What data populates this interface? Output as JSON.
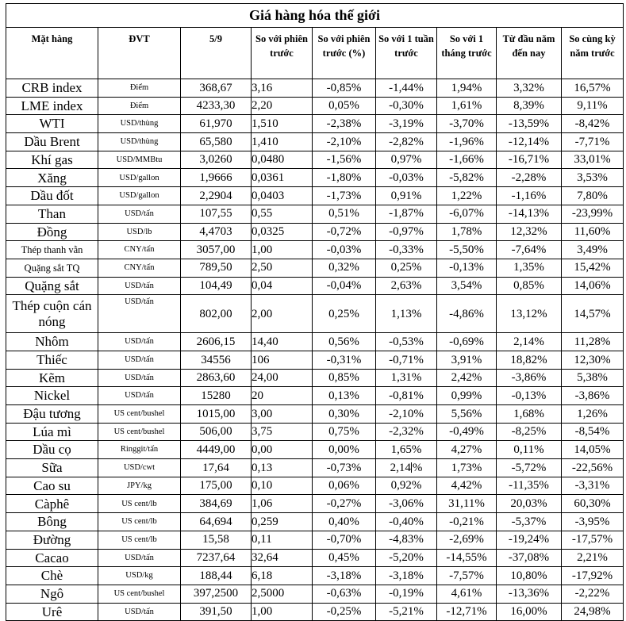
{
  "title": "Giá hàng hóa thế giới",
  "columns": [
    "Mặt hàng",
    "ĐVT",
    "5/9",
    "So với phiên trước",
    "So với phiên trước (%)",
    "So với 1 tuần trước",
    "So với 1 tháng trước",
    "Từ đầu năm đến nay",
    "So cùng kỳ năm trước"
  ],
  "rows": [
    {
      "name": "CRB index",
      "unit": "Điểm",
      "price": "368,67",
      "change": "3,16",
      "pct_session": "-0,85%",
      "pct_week": "-1,44%",
      "pct_month": "1,94%",
      "pct_ytd": "3,32%",
      "pct_yoy": "16,57%"
    },
    {
      "name": "LME index",
      "unit": "Điểm",
      "price": "4233,30",
      "change": "2,20",
      "pct_session": "0,05%",
      "pct_week": "-0,30%",
      "pct_month": "1,61%",
      "pct_ytd": "8,39%",
      "pct_yoy": "9,11%"
    },
    {
      "name": "WTI",
      "unit": "USD/thùng",
      "price": "61,970",
      "change": "1,510",
      "pct_session": "-2,38%",
      "pct_week": "-3,19%",
      "pct_month": "-3,70%",
      "pct_ytd": "-13,59%",
      "pct_yoy": "-8,42%"
    },
    {
      "name": "Dầu Brent",
      "unit": "USD/thùng",
      "price": "65,580",
      "change": "1,410",
      "pct_session": "-2,10%",
      "pct_week": "-2,82%",
      "pct_month": "-1,96%",
      "pct_ytd": "-12,14%",
      "pct_yoy": "-7,71%"
    },
    {
      "name": "Khí gas",
      "unit": "USD/MMBtu",
      "price": "3,0260",
      "change": "0,0480",
      "pct_session": "-1,56%",
      "pct_week": "0,97%",
      "pct_month": "-1,66%",
      "pct_ytd": "-16,71%",
      "pct_yoy": "33,01%"
    },
    {
      "name": "Xăng",
      "unit": "USD/gallon",
      "price": "1,9666",
      "change": "0,0361",
      "pct_session": "-1,80%",
      "pct_week": "-0,03%",
      "pct_month": "-5,82%",
      "pct_ytd": "-2,28%",
      "pct_yoy": "3,53%"
    },
    {
      "name": "Dầu đốt",
      "unit": "USD/gallon",
      "price": "2,2904",
      "change": "0,0403",
      "pct_session": "-1,73%",
      "pct_week": "0,91%",
      "pct_month": "1,22%",
      "pct_ytd": "-1,16%",
      "pct_yoy": "7,80%"
    },
    {
      "name": "Than",
      "unit": "USD/tấn",
      "price": "107,55",
      "change": "0,55",
      "pct_session": "0,51%",
      "pct_week": "-1,87%",
      "pct_month": "-6,07%",
      "pct_ytd": "-14,13%",
      "pct_yoy": "-23,99%"
    },
    {
      "name": "Đồng",
      "unit": "USD/lb",
      "price": "4,4703",
      "change": "0,0325",
      "pct_session": "-0,72%",
      "pct_week": "-0,97%",
      "pct_month": "1,78%",
      "pct_ytd": "12,32%",
      "pct_yoy": "11,60%"
    },
    {
      "name": "Thép thanh vằn",
      "unit": "CNY/tấn",
      "price": "3057,00",
      "change": "1,00",
      "pct_session": "-0,03%",
      "pct_week": "-0,33%",
      "pct_month": "-5,50%",
      "pct_ytd": "-7,64%",
      "pct_yoy": "3,49%",
      "name_small": true
    },
    {
      "name": "Quặng sắt TQ",
      "unit": "CNY/tấn",
      "price": "789,50",
      "change": "2,50",
      "pct_session": "0,32%",
      "pct_week": "0,25%",
      "pct_month": "-0,13%",
      "pct_ytd": "1,35%",
      "pct_yoy": "15,42%",
      "name_small": true
    },
    {
      "name": "Quặng sắt",
      "unit": "USD/tấn",
      "price": "104,49",
      "change": "0,04",
      "pct_session": "-0,04%",
      "pct_week": "2,63%",
      "pct_month": "3,54%",
      "pct_ytd": "0,85%",
      "pct_yoy": "14,06%"
    },
    {
      "name": "Thép cuộn cán nóng",
      "unit": "USD/tấn",
      "price": "802,00",
      "change": "2,00",
      "pct_session": "0,25%",
      "pct_week": "1,13%",
      "pct_month": "-4,86%",
      "pct_ytd": "13,12%",
      "pct_yoy": "14,57%",
      "tall": true
    },
    {
      "name": "Nhôm",
      "unit": "USD/tấn",
      "price": "2606,15",
      "change": "14,40",
      "pct_session": "0,56%",
      "pct_week": "-0,53%",
      "pct_month": "-0,69%",
      "pct_ytd": "2,14%",
      "pct_yoy": "11,28%"
    },
    {
      "name": "Thiếc",
      "unit": "USD/tấn",
      "price": "34556",
      "change": "106",
      "pct_session": "-0,31%",
      "pct_week": "-0,71%",
      "pct_month": "3,91%",
      "pct_ytd": "18,82%",
      "pct_yoy": "12,30%"
    },
    {
      "name": "Kẽm",
      "unit": "USD/tấn",
      "price": "2863,60",
      "change": "24,00",
      "pct_session": "0,85%",
      "pct_week": "1,31%",
      "pct_month": "2,42%",
      "pct_ytd": "-3,86%",
      "pct_yoy": "5,38%"
    },
    {
      "name": "Nickel",
      "unit": "USD/tấn",
      "price": "15280",
      "change": "20",
      "pct_session": "0,13%",
      "pct_week": "-0,81%",
      "pct_month": "0,99%",
      "pct_ytd": "-0,13%",
      "pct_yoy": "-3,86%"
    },
    {
      "name": "Đậu tương",
      "unit": "US cent/bushel",
      "price": "1015,00",
      "change": "3,00",
      "pct_session": "0,30%",
      "pct_week": "-2,10%",
      "pct_month": "5,56%",
      "pct_ytd": "1,68%",
      "pct_yoy": "1,26%"
    },
    {
      "name": "Lúa mì",
      "unit": "US cent/bushel",
      "price": "506,00",
      "change": "3,75",
      "pct_session": "0,75%",
      "pct_week": "-2,32%",
      "pct_month": "-0,49%",
      "pct_ytd": "-8,25%",
      "pct_yoy": "-8,54%"
    },
    {
      "name": "Dầu cọ",
      "unit": "Ringgit/tấn",
      "price": "4449,00",
      "change": "0,00",
      "pct_session": "0,00%",
      "pct_week": "1,65%",
      "pct_month": "4,27%",
      "pct_ytd": "0,11%",
      "pct_yoy": "14,05%"
    },
    {
      "name": "Sữa",
      "unit": "USD/cwt",
      "price": "17,64",
      "change": "0,13",
      "pct_session": "-0,73%",
      "pct_week": "2,14%",
      "pct_month": "1,73%",
      "pct_ytd": "-5,72%",
      "pct_yoy": "-22,56%"
    },
    {
      "name": "Cao su",
      "unit": "JPY/kg",
      "price": "175,00",
      "change": "0,10",
      "pct_session": "0,06%",
      "pct_week": "0,92%",
      "pct_month": "4,42%",
      "pct_ytd": "-11,35%",
      "pct_yoy": "-3,31%"
    },
    {
      "name": "Càphê",
      "unit": "US cent/lb",
      "price": "384,69",
      "change": "1,06",
      "pct_session": "-0,27%",
      "pct_week": "-3,06%",
      "pct_month": "31,11%",
      "pct_ytd": "20,03%",
      "pct_yoy": "60,30%"
    },
    {
      "name": "Bông",
      "unit": "US cent/lb",
      "price": "64,694",
      "change": "0,259",
      "pct_session": "0,40%",
      "pct_week": "-0,40%",
      "pct_month": "-0,21%",
      "pct_ytd": "-5,37%",
      "pct_yoy": "-3,95%"
    },
    {
      "name": "Đường",
      "unit": "US cent/lb",
      "price": "15,58",
      "change": "0,11",
      "pct_session": "-0,70%",
      "pct_week": "-4,83%",
      "pct_month": "-2,69%",
      "pct_ytd": "-19,24%",
      "pct_yoy": "-17,57%"
    },
    {
      "name": "Cacao",
      "unit": "USD/tấn",
      "price": "7237,64",
      "change": "32,64",
      "pct_session": "0,45%",
      "pct_week": "-5,20%",
      "pct_month": "-14,55%",
      "pct_ytd": "-37,08%",
      "pct_yoy": "2,21%"
    },
    {
      "name": "Chè",
      "unit": "USD/kg",
      "price": "188,44",
      "change": "6,18",
      "pct_session": "-3,18%",
      "pct_week": "-3,18%",
      "pct_month": "-7,57%",
      "pct_ytd": "10,80%",
      "pct_yoy": "-17,92%"
    },
    {
      "name": "Ngô",
      "unit": "US cent/bushel",
      "price": "397,2500",
      "change": "2,5000",
      "pct_session": "-0,63%",
      "pct_week": "-0,19%",
      "pct_month": "4,61%",
      "pct_ytd": "-13,36%",
      "pct_yoy": "-2,22%"
    },
    {
      "name": "Urê",
      "unit": "USD/tấn",
      "price": "391,50",
      "change": "1,00",
      "pct_session": "-0,25%",
      "pct_week": "-5,21%",
      "pct_month": "-12,71%",
      "pct_ytd": "16,00%",
      "pct_yoy": "24,98%"
    }
  ],
  "caret": {
    "row": "Sữa",
    "field": "pct_week",
    "before": "2,14",
    "after": "%"
  }
}
